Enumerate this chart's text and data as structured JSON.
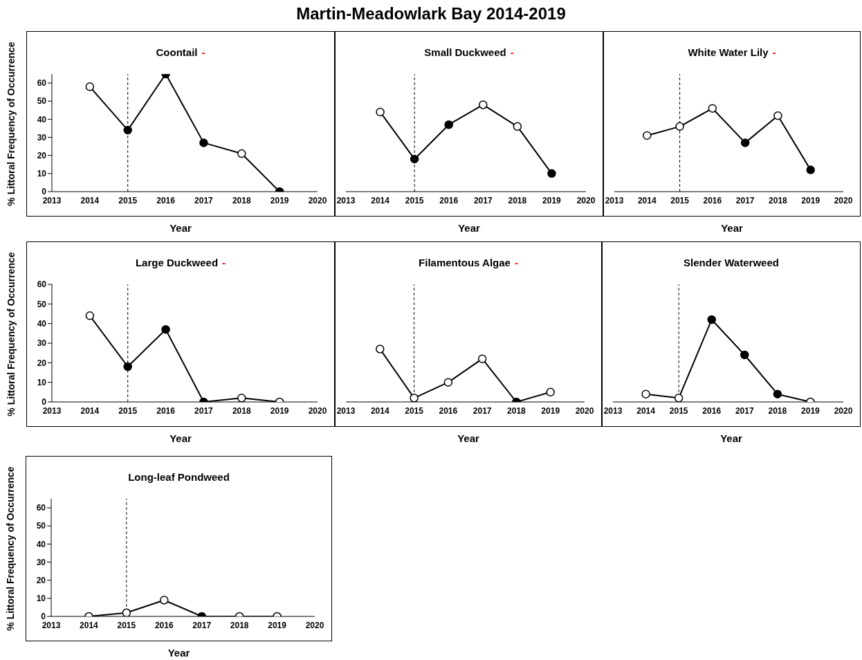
{
  "chart_data": [
    {
      "type": "other",
      "title": "Martin-Meadowlark Bay 2014-2019"
    },
    {
      "type": "line",
      "title": "Coontail",
      "annotations": [
        "-"
      ],
      "xlabel": "Year",
      "ylabel": "% Littoral Frequency of Occurrence",
      "x": [
        2014,
        2015,
        2016,
        2017,
        2018,
        2019
      ],
      "xlim": [
        2013,
        2020
      ],
      "xticks": [
        2013,
        2014,
        2015,
        2016,
        2017,
        2018,
        2019,
        2020
      ],
      "ylim": [
        0,
        65
      ],
      "yticks": [
        0,
        10,
        20,
        30,
        40,
        50,
        60
      ],
      "marker": "circle",
      "ref_lines": [
        {
          "axis": "x",
          "value": 2015,
          "line_style": "dashed"
        }
      ],
      "series": [
        {
          "color": "#000000",
          "values": [
            58,
            34,
            65,
            27,
            21,
            0
          ],
          "colors": [
            "#ffffff",
            "#000000",
            "#000000",
            "#000000",
            "#ffffff",
            "#000000"
          ]
        }
      ]
    },
    {
      "type": "line",
      "title": "Small Duckweed",
      "annotations": [
        "-"
      ],
      "xlabel": "Year",
      "x": [
        2014,
        2015,
        2016,
        2017,
        2018,
        2019
      ],
      "xlim": [
        2013,
        2020
      ],
      "xticks": [
        2013,
        2014,
        2015,
        2016,
        2017,
        2018,
        2019,
        2020
      ],
      "ylim": [
        0,
        65
      ],
      "tick_labels": "x",
      "marker": "circle",
      "ref_lines": [
        {
          "axis": "x",
          "value": 2015,
          "line_style": "dashed"
        }
      ],
      "series": [
        {
          "color": "#000000",
          "values": [
            44,
            18,
            37,
            48,
            36,
            10
          ],
          "colors": [
            "#ffffff",
            "#000000",
            "#000000",
            "#ffffff",
            "#ffffff",
            "#000000"
          ]
        }
      ]
    },
    {
      "type": "line",
      "title": "White Water Lily",
      "annotations": [
        "-"
      ],
      "xlabel": "Year",
      "x": [
        2014,
        2015,
        2016,
        2017,
        2018,
        2019
      ],
      "xlim": [
        2013,
        2020
      ],
      "xticks": [
        2013,
        2014,
        2015,
        2016,
        2017,
        2018,
        2019,
        2020
      ],
      "ylim": [
        0,
        65
      ],
      "tick_labels": "x",
      "marker": "circle",
      "ref_lines": [
        {
          "axis": "x",
          "value": 2015,
          "line_style": "dashed"
        }
      ],
      "series": [
        {
          "color": "#000000",
          "values": [
            31,
            36,
            46,
            27,
            42,
            12
          ],
          "colors": [
            "#ffffff",
            "#ffffff",
            "#ffffff",
            "#000000",
            "#ffffff",
            "#000000"
          ]
        }
      ]
    },
    {
      "type": "line",
      "title": "Large Duckweed",
      "annotations": [
        "-"
      ],
      "xlabel": "Year",
      "ylabel": "% Littoral Frequency of Occurrence",
      "x": [
        2014,
        2015,
        2016,
        2017,
        2018,
        2019
      ],
      "xlim": [
        2013,
        2020
      ],
      "xticks": [
        2013,
        2014,
        2015,
        2016,
        2017,
        2018,
        2019,
        2020
      ],
      "ylim": [
        0,
        60
      ],
      "yticks": [
        0,
        10,
        20,
        30,
        40,
        50,
        60
      ],
      "marker": "circle",
      "ref_lines": [
        {
          "axis": "x",
          "value": 2015,
          "line_style": "dashed"
        }
      ],
      "series": [
        {
          "color": "#000000",
          "values": [
            44,
            18,
            37,
            0,
            2,
            0
          ],
          "colors": [
            "#ffffff",
            "#000000",
            "#000000",
            "#000000",
            "#ffffff",
            "#ffffff"
          ]
        }
      ]
    },
    {
      "type": "line",
      "title": "Filamentous Algae",
      "annotations": [
        "-"
      ],
      "xlabel": "Year",
      "x": [
        2014,
        2015,
        2016,
        2017,
        2018,
        2019
      ],
      "xlim": [
        2013,
        2020
      ],
      "xticks": [
        2013,
        2014,
        2015,
        2016,
        2017,
        2018,
        2019,
        2020
      ],
      "ylim": [
        0,
        60
      ],
      "tick_labels": "x",
      "marker": "circle",
      "ref_lines": [
        {
          "axis": "x",
          "value": 2015,
          "line_style": "dashed"
        }
      ],
      "series": [
        {
          "color": "#000000",
          "values": [
            27,
            2,
            10,
            22,
            0,
            5
          ],
          "colors": [
            "#ffffff",
            "#ffffff",
            "#ffffff",
            "#ffffff",
            "#000000",
            "#ffffff"
          ]
        }
      ]
    },
    {
      "type": "line",
      "title": "Slender Waterweed",
      "xlabel": "Year",
      "x": [
        2014,
        2015,
        2016,
        2017,
        2018,
        2019
      ],
      "xlim": [
        2013,
        2020
      ],
      "xticks": [
        2013,
        2014,
        2015,
        2016,
        2017,
        2018,
        2019,
        2020
      ],
      "ylim": [
        0,
        60
      ],
      "tick_labels": "x",
      "marker": "circle",
      "ref_lines": [
        {
          "axis": "x",
          "value": 2015,
          "line_style": "dashed"
        }
      ],
      "series": [
        {
          "color": "#000000",
          "values": [
            4,
            2,
            42,
            24,
            4,
            0
          ],
          "colors": [
            "#ffffff",
            "#ffffff",
            "#000000",
            "#000000",
            "#000000",
            "#ffffff"
          ]
        }
      ]
    },
    {
      "type": "line",
      "title": "Long-leaf Pondweed",
      "xlabel": "Year",
      "ylabel": "% Littoral Frequency of Occurrence",
      "x": [
        2014,
        2015,
        2016,
        2017,
        2018,
        2019
      ],
      "xlim": [
        2013,
        2020
      ],
      "xticks": [
        2013,
        2014,
        2015,
        2016,
        2017,
        2018,
        2019,
        2020
      ],
      "ylim": [
        0,
        65
      ],
      "yticks": [
        0,
        10,
        20,
        30,
        40,
        50,
        60
      ],
      "marker": "circle",
      "ref_lines": [
        {
          "axis": "x",
          "value": 2015,
          "line_style": "dashed"
        }
      ],
      "series": [
        {
          "color": "#000000",
          "values": [
            0,
            2,
            9,
            0,
            0,
            0
          ],
          "colors": [
            "#ffffff",
            "#ffffff",
            "#ffffff",
            "#000000",
            "#ffffff",
            "#ffffff"
          ]
        }
      ]
    }
  ]
}
